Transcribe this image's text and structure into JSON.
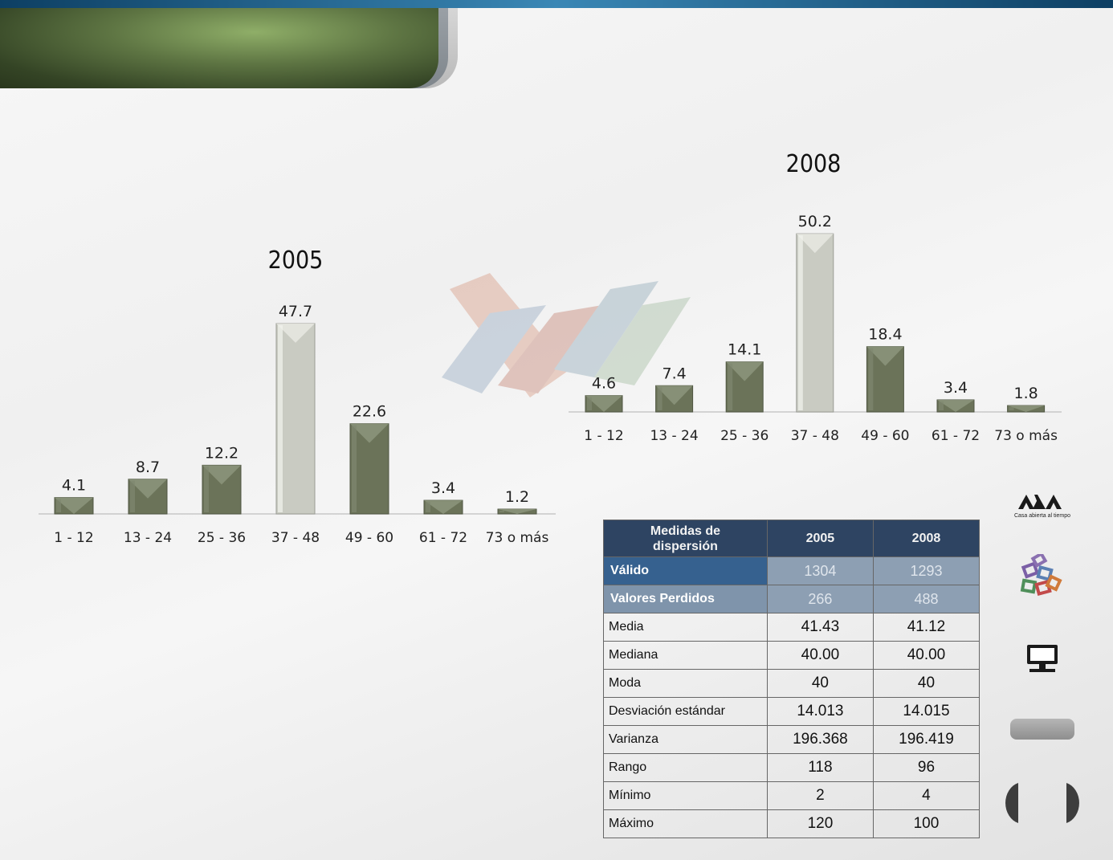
{
  "charts": [
    {
      "type": "bar",
      "title": "2005",
      "categories": [
        "1 - 12",
        "13 - 24",
        "25 - 36",
        "37 - 48",
        "49 - 60",
        "61 - 72",
        "73 o más"
      ],
      "values": [
        4.1,
        8.7,
        12.2,
        47.7,
        22.6,
        3.4,
        1.2
      ],
      "highlight_index": 3,
      "bar_color": "#6b7359",
      "highlight_color": "#c9cbc2"
    },
    {
      "type": "bar",
      "title": "2008",
      "categories": [
        "1 - 12",
        "13 - 24",
        "25 - 36",
        "37 - 48",
        "49 - 60",
        "61 - 72",
        "73 o más"
      ],
      "values": [
        4.6,
        7.4,
        14.1,
        50.2,
        18.4,
        3.4,
        1.8
      ],
      "highlight_index": 3,
      "bar_color": "#6b7359",
      "highlight_color": "#c9cbc2"
    }
  ],
  "chart_data": [
    {
      "type": "bar",
      "title": "2005",
      "categories": [
        "1 - 12",
        "13 - 24",
        "25 - 36",
        "37 - 48",
        "49 - 60",
        "61 - 72",
        "73 o más"
      ],
      "values": [
        4.1,
        8.7,
        12.2,
        47.7,
        22.6,
        3.4,
        1.2
      ]
    },
    {
      "type": "bar",
      "title": "2008",
      "categories": [
        "1 - 12",
        "13 - 24",
        "25 - 36",
        "37 - 48",
        "49 - 60",
        "61 - 72",
        "73 o más"
      ],
      "values": [
        4.6,
        7.4,
        14.1,
        50.2,
        18.4,
        3.4,
        1.8
      ]
    },
    {
      "type": "table",
      "columns": [
        "Medidas de dispersión",
        "2005",
        "2008"
      ],
      "rows": [
        [
          "Válido",
          "1304",
          "1293"
        ],
        [
          "Valores Perdidos",
          "266",
          "488"
        ],
        [
          "Media",
          "41.43",
          "41.12"
        ],
        [
          "Mediana",
          "40.00",
          "40.00"
        ],
        [
          "Moda",
          "40",
          "40"
        ],
        [
          "Desviación estándar",
          "14.013",
          "14.015"
        ],
        [
          "Varianza",
          "196.368",
          "196.419"
        ],
        [
          "Rango",
          "118",
          "96"
        ],
        [
          "Mínimo",
          "2",
          "4"
        ],
        [
          "Máximo",
          "120",
          "100"
        ]
      ]
    }
  ],
  "table": {
    "header": [
      "Medidas  de dispersión",
      "2005",
      "2008"
    ],
    "rows": [
      {
        "label": "Válido",
        "v2005": "1304",
        "v2008": "1293"
      },
      {
        "label": "Valores Perdidos",
        "v2005": "266",
        "v2008": "488"
      },
      {
        "label": "Media",
        "v2005": "41.43",
        "v2008": "41.12"
      },
      {
        "label": "Mediana",
        "v2005": "40.00",
        "v2008": "40.00"
      },
      {
        "label": "Moda",
        "v2005": "40",
        "v2008": "40"
      },
      {
        "label": "Desviación estándar",
        "v2005": "14.013",
        "v2008": "14.015"
      },
      {
        "label": "Varianza",
        "v2005": "196.368",
        "v2008": "196.419"
      },
      {
        "label": "Rango",
        "v2005": "118",
        "v2008": "96"
      },
      {
        "label": "Mínimo",
        "v2005": "2",
        "v2008": "4"
      },
      {
        "label": "Máximo",
        "v2005": "120",
        "v2008": "100"
      }
    ]
  },
  "sidebar": {
    "logo_caption": "Casa abierta al tiempo",
    "icons": [
      "uam-logo-icon",
      "puzzle-blocks-icon",
      "computer-monitor-icon"
    ]
  },
  "colors": {
    "top_bar": "#1f5f8a",
    "header_banner": "#5e7543",
    "table_header": "#2e4462",
    "table_valid": "#36618f"
  }
}
